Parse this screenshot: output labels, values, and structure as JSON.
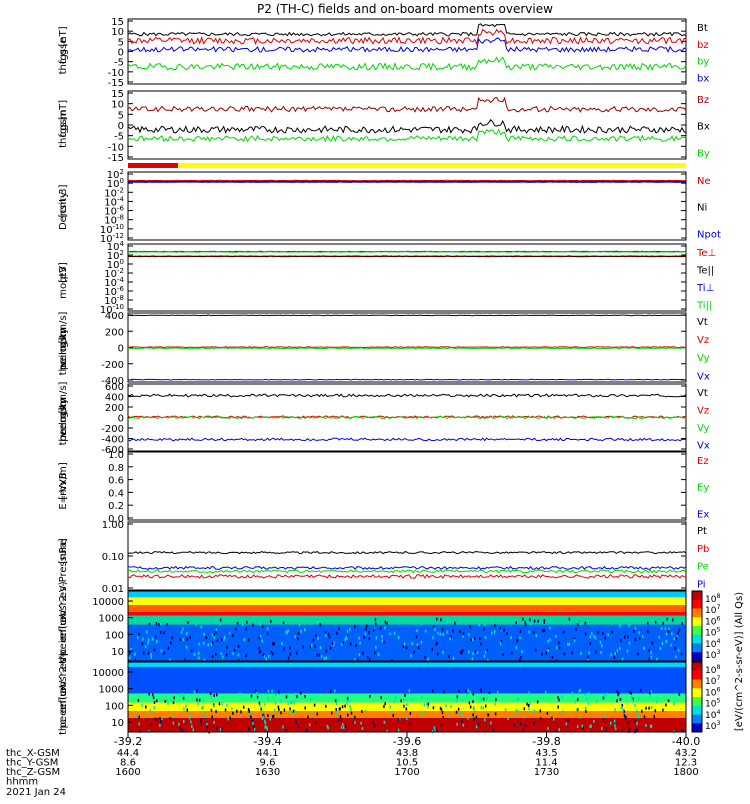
{
  "title": "P2 (TH-C) fields and on-board moments overview",
  "colors": {
    "black": "#000000",
    "red": "#e00000",
    "green": "#00d800",
    "blue": "#0000e0",
    "darkred": "#990000",
    "yellow": "#ffff00"
  },
  "chart_data": [
    {
      "type": "line",
      "ylabel": [
        "thc",
        "fgs",
        "gse",
        "[nT]"
      ],
      "ylim": [
        -15,
        15
      ],
      "yticks": [
        "15",
        "10",
        "5",
        "0",
        "-5",
        "-10",
        "-15"
      ],
      "series": [
        {
          "name": "Bt",
          "color": "black",
          "level": 8,
          "noise": 0.8
        },
        {
          "name": "bz",
          "color": "red",
          "level": 5,
          "noise": 1.5
        },
        {
          "name": "by",
          "color": "green",
          "level": -7,
          "noise": 1.5
        },
        {
          "name": "bx",
          "color": "blue",
          "level": 1,
          "noise": 1.2
        }
      ]
    },
    {
      "type": "line",
      "ylabel": [
        "thc",
        "fgs",
        "gsm",
        "[nT]"
      ],
      "ylim": [
        -15,
        15
      ],
      "yticks": [
        "15",
        "10",
        "5",
        "0",
        "-5",
        "-10",
        "-15"
      ],
      "series": [
        {
          "name": "Bz",
          "color": "darkred",
          "level": 7,
          "noise": 1.2
        },
        {
          "name": "Bx",
          "color": "black",
          "level": -2,
          "noise": 1.5
        },
        {
          "name": "By",
          "color": "green",
          "level": -6,
          "noise": 1.2
        }
      ]
    },
    {
      "type": "line",
      "ylabel": [
        "Density",
        "[cm-3]"
      ],
      "ylim": [
        -13,
        3
      ],
      "log": true,
      "yticks": [
        "10^2",
        "10^0",
        "10^-2",
        "10^-4",
        "10^-6",
        "10^-8",
        "10^-10",
        "10^-12"
      ],
      "series": [
        {
          "name": "Ne",
          "color": "red",
          "level": 1,
          "noise": 0.05
        },
        {
          "name": "Ni",
          "color": "black",
          "level": 0.8,
          "noise": 0.05
        },
        {
          "name": "Npot",
          "color": "blue",
          "level": 0.6,
          "noise": 0.05
        }
      ]
    },
    {
      "type": "line",
      "ylabel": [
        "moqt3",
        "[eV]"
      ],
      "ylim": [
        -11,
        5
      ],
      "log": true,
      "yticks": [
        "10^4",
        "10^2",
        "10^0",
        "10^-2",
        "10^-4",
        "10^-6",
        "10^-8",
        "10^-10"
      ],
      "series": [
        {
          "name": "Te⊥",
          "color": "red",
          "level": 2,
          "noise": 0.05
        },
        {
          "name": "Te||",
          "color": "black",
          "level": 2.1,
          "noise": 0.05
        },
        {
          "name": "Ti⊥",
          "color": "blue",
          "level": 3.2,
          "noise": 0.05
        },
        {
          "name": "Ti||",
          "color": "green",
          "level": 3.1,
          "noise": 0.05
        }
      ]
    },
    {
      "type": "line",
      "ylabel": [
        "thc",
        "peim",
        "velocity",
        "gsm",
        "[km/s]"
      ],
      "ylim": [
        -440,
        440
      ],
      "yticks": [
        "400",
        "200",
        "0",
        "-200",
        "-400"
      ],
      "series": [
        {
          "name": "Vt",
          "color": "black",
          "level": 410,
          "noise": 4
        },
        {
          "name": "Vz",
          "color": "red",
          "level": 5,
          "noise": 5
        },
        {
          "name": "Vy",
          "color": "green",
          "level": -10,
          "noise": 6
        },
        {
          "name": "Vx",
          "color": "blue",
          "level": -410,
          "noise": 4
        }
      ]
    },
    {
      "type": "line",
      "ylabel": [
        "thc",
        "peem",
        "velocity",
        "gsm",
        "[km/s]"
      ],
      "ylim": [
        -640,
        640
      ],
      "yticks": [
        "600",
        "400",
        "200",
        "0",
        "-200",
        "-400",
        "-600"
      ],
      "series": [
        {
          "name": "Vt",
          "color": "black",
          "level": 420,
          "noise": 25
        },
        {
          "name": "Vz",
          "color": "red",
          "level": 10,
          "noise": 20
        },
        {
          "name": "Vy",
          "color": "green",
          "level": 0,
          "noise": 20
        },
        {
          "name": "Vx",
          "color": "blue",
          "level": -420,
          "noise": 25
        }
      ]
    },
    {
      "type": "line",
      "ylabel": [
        "E=-VxB",
        "[mV/m]"
      ],
      "ylim": [
        0,
        1
      ],
      "yticks": [
        "1.0",
        "0.8",
        "0.6",
        "0.4",
        "0.2",
        "0.0"
      ],
      "series": [
        {
          "name": "Ez",
          "color": "red"
        },
        {
          "name": "Ey",
          "color": "green"
        },
        {
          "name": "Ex",
          "color": "blue"
        }
      ]
    },
    {
      "type": "line",
      "ylabel": [
        "Pressure",
        "[nPa]"
      ],
      "ylim": [
        -2,
        0
      ],
      "log": true,
      "yticks": [
        "1.00",
        "0.10",
        "0.01"
      ],
      "series": [
        {
          "name": "Pt",
          "color": "black",
          "level": -0.9,
          "noise": 0.03
        },
        {
          "name": "Pb",
          "color": "red",
          "level": -1.6,
          "noise": 0.05
        },
        {
          "name": "Pe",
          "color": "green",
          "level": -1.45,
          "noise": 0.04
        },
        {
          "name": "Pi",
          "color": "blue",
          "level": -1.35,
          "noise": 0.04
        }
      ]
    },
    {
      "type": "heatmap",
      "ylabel": [
        "thc",
        "peir",
        "en",
        "eflux",
        "eV",
        "(cm^2-s-",
        "sr-eV)"
      ],
      "yticks": [
        "10000",
        "1000",
        "100",
        "10"
      ],
      "ylim": [
        5,
        20000
      ],
      "colorbar_ticks": [
        "10^8",
        "10^7",
        "10^6",
        "10^5",
        "10^4",
        "10^3"
      ]
    },
    {
      "type": "heatmap",
      "ylabel": [
        "thc",
        "peer",
        "en",
        "eflux",
        "eV",
        "(cm^2-s-",
        "sr-eV)"
      ],
      "yticks": [
        "10000",
        "1000",
        "100",
        "10"
      ],
      "ylim": [
        5,
        20000
      ],
      "colorbar_ticks": [
        "10^8",
        "10^7",
        "10^6",
        "10^5",
        "10^4",
        "10^3"
      ]
    }
  ],
  "colorbar_label": "[eV/(cm^2-s-sr-eV)] (All Qs)",
  "x_axis": {
    "ticks": [
      "-39.2",
      "-39.4",
      "-39.6",
      "-39.8",
      "-40.0"
    ],
    "rows": [
      {
        "label": "thc_X-GSM",
        "values": [
          "44.4",
          "44.1",
          "43.8",
          "43.5",
          "43.2"
        ]
      },
      {
        "label": "thc_Y-GSM",
        "values": [
          "8.6",
          "9.6",
          "10.5",
          "11.4",
          "12.3"
        ]
      },
      {
        "label": "thc_Z-GSM",
        "values": [
          "1600",
          "1630",
          "1700",
          "1730",
          "1800"
        ]
      },
      {
        "label": "hhmm",
        "values": []
      }
    ],
    "date": "2021 Jan 24"
  },
  "mode_bar": {
    "colors": [
      "red",
      "yellow"
    ]
  }
}
